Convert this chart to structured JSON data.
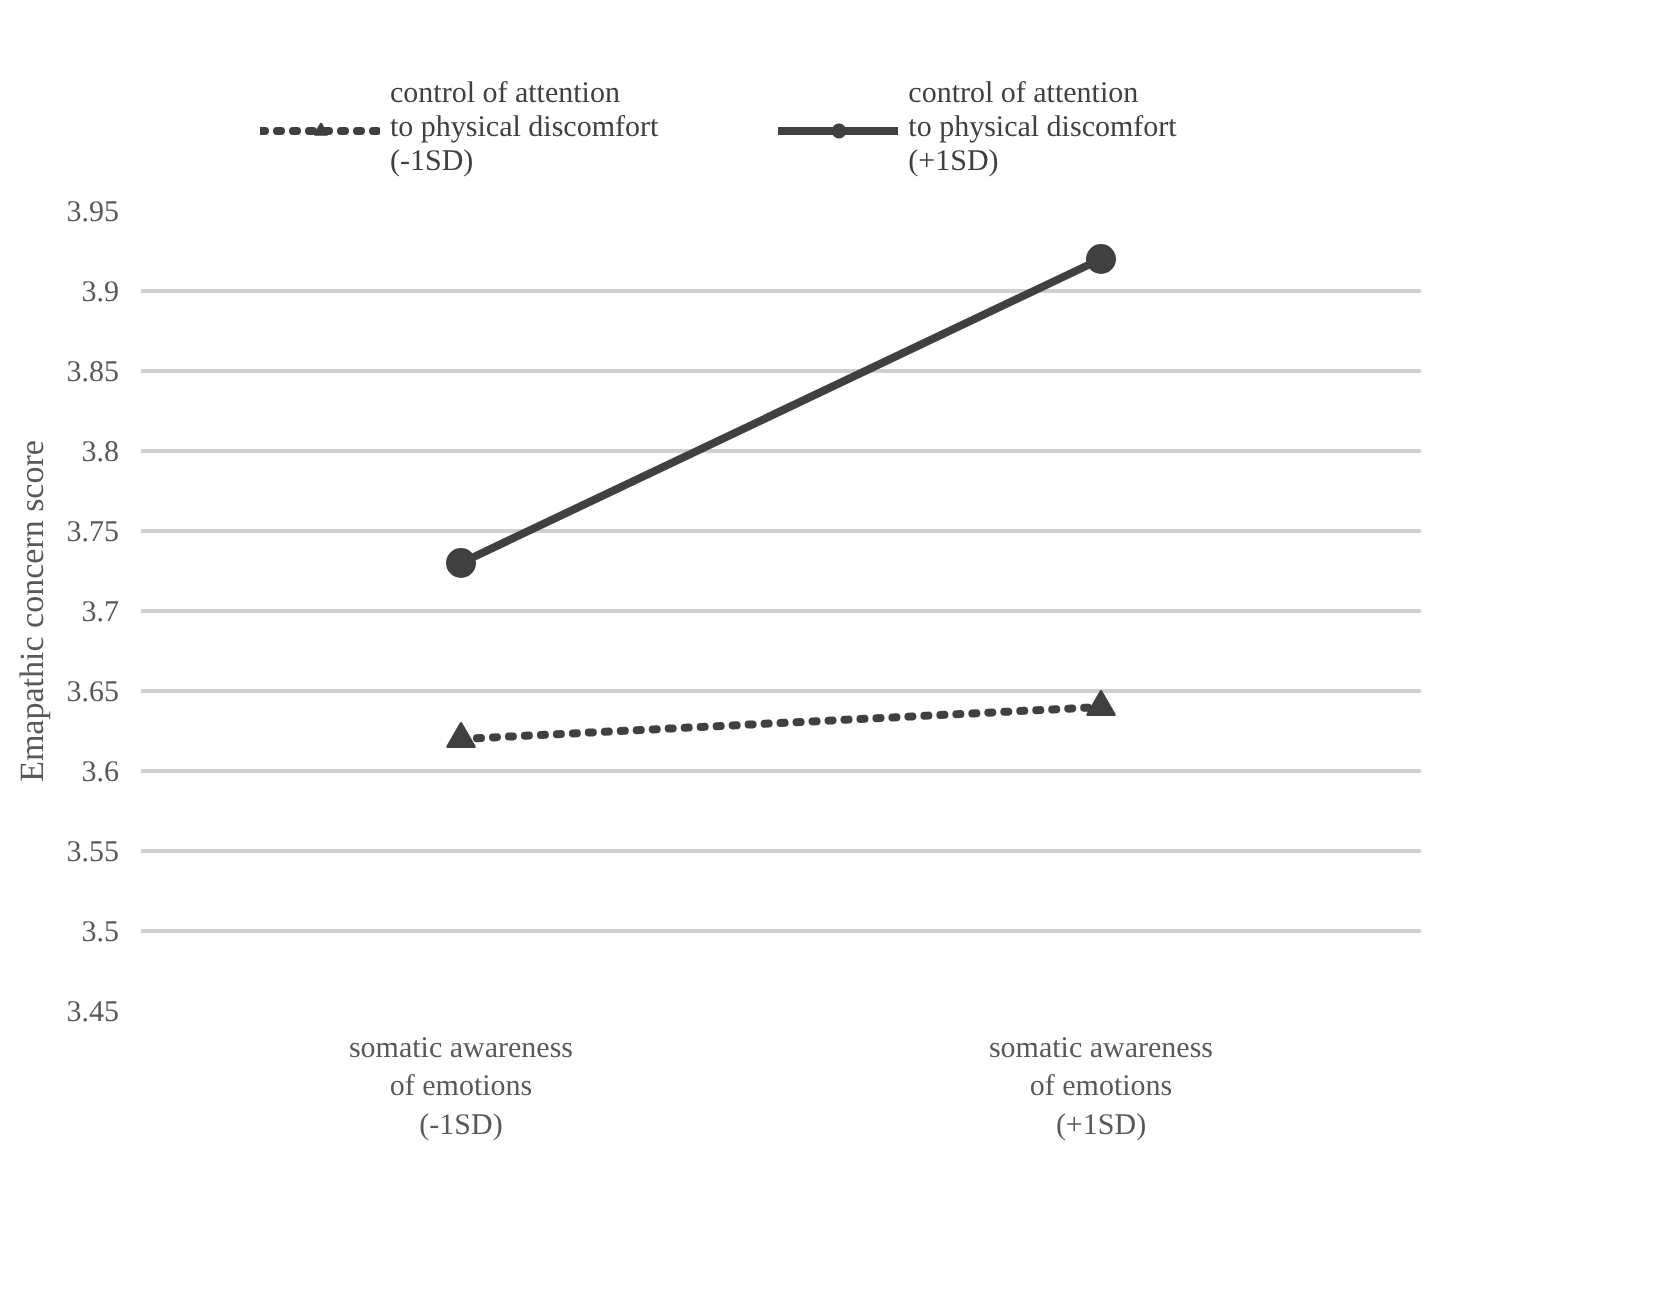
{
  "chart_data": {
    "type": "line",
    "ylabel": "Emapathic concern score",
    "categories": [
      "somatic awareness\nof emotions\n(-1SD)",
      "somatic awareness\nof emotions\n(+1SD)"
    ],
    "series": [
      {
        "name": "control of attention\nto physical discomfort\n(-1SD)",
        "color": "#404040",
        "values": [
          3.62,
          3.64
        ],
        "marker": "triangle",
        "line_style": "dotted"
      },
      {
        "name": "control of attention\nto physical discomfort\n(+1SD)",
        "color": "#404040",
        "values": [
          3.73,
          3.92
        ],
        "marker": "circle",
        "line_style": "solid"
      }
    ],
    "ylim": [
      3.45,
      3.95
    ],
    "yticks": [
      3.45,
      3.5,
      3.55,
      3.6,
      3.65,
      3.7,
      3.75,
      3.8,
      3.85,
      3.9,
      3.95
    ],
    "grid": "y",
    "legend": "top"
  }
}
